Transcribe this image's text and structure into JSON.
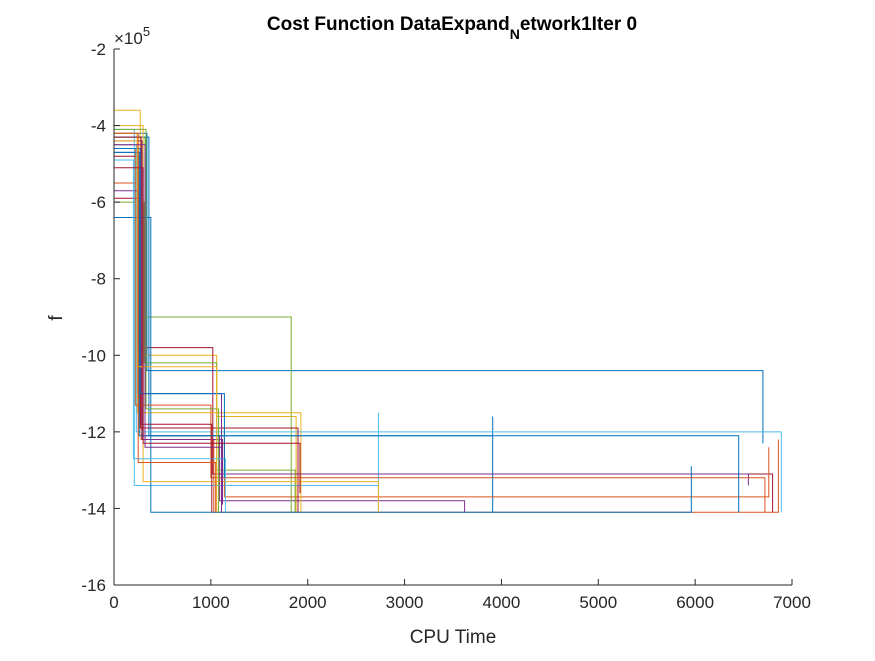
{
  "chart_data": {
    "type": "line",
    "title": {
      "main": "Cost Function DataExpand",
      "subscript": "N",
      "rest": "etwork1Iter 0"
    },
    "xlabel": "CPU Time",
    "ylabel": "f",
    "exponent_label": {
      "multiplier": "×10",
      "power": "5"
    },
    "xlim": [
      0,
      7000
    ],
    "ylim": [
      -16,
      -2
    ],
    "y_scale_factor": 100000,
    "x_ticks": [
      0,
      1000,
      2000,
      3000,
      4000,
      5000,
      6000,
      7000
    ],
    "x_tick_labels": [
      "0",
      "1000",
      "2000",
      "3000",
      "4000",
      "5000",
      "6000",
      "7000"
    ],
    "y_ticks": [
      -2,
      -4,
      -6,
      -8,
      -10,
      -12,
      -14,
      -16
    ],
    "y_tick_labels": [
      "-2",
      "-4",
      "-6",
      "-8",
      "-10",
      "-12",
      "-14",
      "-16"
    ],
    "grid": false,
    "legend": "none",
    "colors": [
      "#0072BD",
      "#D95319",
      "#EDB120",
      "#7E2F8E",
      "#77AC30",
      "#4DBEEE",
      "#A2142F"
    ],
    "series": [
      {
        "color_index": 0,
        "x": [
          0,
          340,
          340,
          6700,
          6700
        ],
        "y": [
          -4.2,
          -4.2,
          -10.4,
          -10.4,
          -12.3
        ]
      },
      {
        "color_index": 1,
        "x": [
          0,
          280,
          280,
          1030,
          1030,
          6860,
          6860
        ],
        "y": [
          -4.5,
          -4.5,
          -12.2,
          -12.2,
          -14.1,
          -14.1,
          -12.2
        ]
      },
      {
        "color_index": 2,
        "x": [
          0,
          270,
          270,
          1060,
          1060,
          1880,
          1880
        ],
        "y": [
          -3.6,
          -3.6,
          -10.0,
          -10.0,
          -11.6,
          -11.6,
          -14.1
        ]
      },
      {
        "color_index": 3,
        "x": [
          0,
          300,
          300,
          1090,
          1090,
          3620,
          3620
        ],
        "y": [
          -4.7,
          -4.7,
          -12.1,
          -12.1,
          -13.8,
          -13.8,
          -14.1
        ]
      },
      {
        "color_index": 4,
        "x": [
          0,
          320,
          320,
          1830,
          1830,
          1830
        ],
        "y": [
          -4.3,
          -4.3,
          -9.0,
          -9.0,
          -13.4,
          -14.1
        ]
      },
      {
        "color_index": 5,
        "x": [
          0,
          210,
          210,
          2730,
          2730,
          2730
        ],
        "y": [
          -4.1,
          -4.1,
          -13.4,
          -13.4,
          -11.5,
          -14.1
        ]
      },
      {
        "color_index": 6,
        "x": [
          0,
          250,
          250,
          1020,
          1020,
          6800,
          6800
        ],
        "y": [
          -4.8,
          -4.8,
          -9.8,
          -9.8,
          -13.1,
          -13.1,
          -14.1
        ]
      },
      {
        "color_index": 0,
        "x": [
          0,
          360,
          360,
          3910,
          3910,
          3910
        ],
        "y": [
          -4.3,
          -4.3,
          -12.1,
          -12.1,
          -11.6,
          -14.1
        ]
      },
      {
        "color_index": 1,
        "x": [
          0,
          260,
          260,
          1140,
          1140,
          6760,
          6760
        ],
        "y": [
          -5.5,
          -5.5,
          -11.9,
          -11.9,
          -13.7,
          -13.7,
          -12.4
        ]
      },
      {
        "color_index": 2,
        "x": [
          0,
          240,
          240,
          1930,
          1930,
          1930
        ],
        "y": [
          -4.2,
          -4.2,
          -11.5,
          -11.5,
          -12.0,
          -14.1
        ]
      },
      {
        "color_index": 3,
        "x": [
          0,
          290,
          290,
          1120,
          1120,
          6550,
          6550
        ],
        "y": [
          -4.4,
          -4.4,
          -12.2,
          -12.2,
          -13.1,
          -13.1,
          -13.4
        ]
      },
      {
        "color_index": 4,
        "x": [
          0,
          310,
          310,
          1060,
          1060,
          1870,
          1870
        ],
        "y": [
          -6.0,
          -6.0,
          -10.2,
          -10.2,
          -13.0,
          -13.0,
          -14.1
        ]
      },
      {
        "color_index": 5,
        "x": [
          0,
          230,
          230,
          6890,
          6890
        ],
        "y": [
          -4.5,
          -4.5,
          -12.0,
          -12.0,
          -14.1
        ]
      },
      {
        "color_index": 6,
        "x": [
          0,
          270,
          270,
          1900,
          1900
        ],
        "y": [
          -5.9,
          -5.9,
          -11.9,
          -11.9,
          -14.1
        ]
      },
      {
        "color_index": 0,
        "x": [
          0,
          380,
          380,
          5960,
          5960
        ],
        "y": [
          -6.4,
          -6.4,
          -14.1,
          -14.1,
          -12.9
        ]
      },
      {
        "color_index": 1,
        "x": [
          0,
          220,
          220,
          1000,
          1000,
          6720,
          6720
        ],
        "y": [
          -4.6,
          -4.6,
          -11.3,
          -11.3,
          -13.2,
          -13.2,
          -14.1
        ]
      },
      {
        "color_index": 2,
        "x": [
          0,
          300,
          300,
          2730,
          2730
        ],
        "y": [
          -4.0,
          -4.0,
          -13.3,
          -13.3,
          -14.1
        ]
      },
      {
        "color_index": 3,
        "x": [
          0,
          250,
          250,
          1110,
          1110
        ],
        "y": [
          -5.7,
          -5.7,
          -11.0,
          -11.0,
          -14.1
        ]
      },
      {
        "color_index": 4,
        "x": [
          0,
          330,
          330,
          1080,
          1080
        ],
        "y": [
          -4.1,
          -4.1,
          -11.4,
          -11.4,
          -14.1
        ]
      },
      {
        "color_index": 5,
        "x": [
          0,
          200,
          200,
          1150,
          1150
        ],
        "y": [
          -4.9,
          -4.9,
          -12.7,
          -12.7,
          -14.1
        ]
      },
      {
        "color_index": 6,
        "x": [
          0,
          280,
          280,
          1010,
          1010
        ],
        "y": [
          -4.3,
          -4.3,
          -11.8,
          -11.8,
          -14.1
        ]
      },
      {
        "color_index": 0,
        "x": [
          0,
          270,
          270,
          1140,
          1140
        ],
        "y": [
          -4.6,
          -4.6,
          -11.0,
          -11.0,
          -13.2
        ]
      },
      {
        "color_index": 0,
        "x": [
          0,
          260,
          260,
          6450,
          6450
        ],
        "y": [
          -4.7,
          -4.7,
          -12.1,
          -12.1,
          -14.1
        ]
      },
      {
        "color_index": 2,
        "x": [
          0,
          240,
          240,
          1060,
          1060
        ],
        "y": [
          -4.4,
          -4.4,
          -10.3,
          -10.3,
          -14.1
        ]
      },
      {
        "color_index": 6,
        "x": [
          0,
          300,
          300,
          1920,
          1920
        ],
        "y": [
          -5.1,
          -5.1,
          -12.3,
          -12.3,
          -13.6
        ]
      },
      {
        "color_index": 1,
        "x": [
          0,
          250,
          250,
          1050,
          1050
        ],
        "y": [
          -4.2,
          -4.2,
          -12.8,
          -12.8,
          -14.1
        ]
      },
      {
        "color_index": 3,
        "x": [
          0,
          320,
          320,
          1120,
          1120
        ],
        "y": [
          -4.5,
          -4.5,
          -12.4,
          -12.4,
          -13.9
        ]
      }
    ]
  }
}
